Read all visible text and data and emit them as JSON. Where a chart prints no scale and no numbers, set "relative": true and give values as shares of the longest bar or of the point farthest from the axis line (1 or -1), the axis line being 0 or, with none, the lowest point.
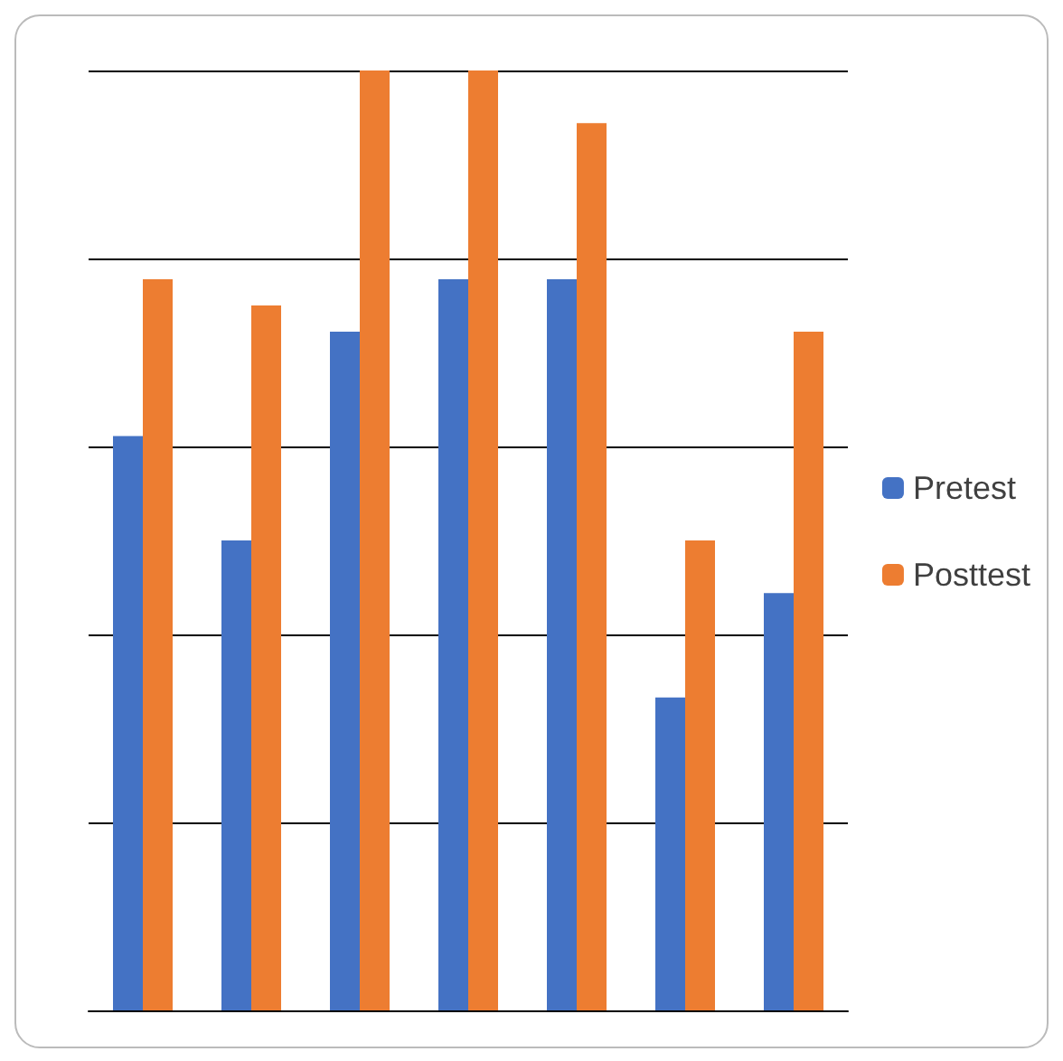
{
  "chart_data": {
    "type": "bar",
    "relative": true,
    "categories": [
      null,
      null,
      null,
      null,
      null,
      null,
      null
    ],
    "series": [
      {
        "name": "Pretest",
        "color": "#4472c4",
        "values": [
          0.611,
          0.5,
          0.722,
          0.778,
          0.778,
          0.333,
          0.444
        ]
      },
      {
        "name": "Posttest",
        "color": "#ed7d31",
        "values": [
          0.778,
          0.75,
          1,
          1,
          0.944,
          0.5,
          0.722
        ]
      }
    ],
    "grid": "y",
    "legend": "right"
  }
}
